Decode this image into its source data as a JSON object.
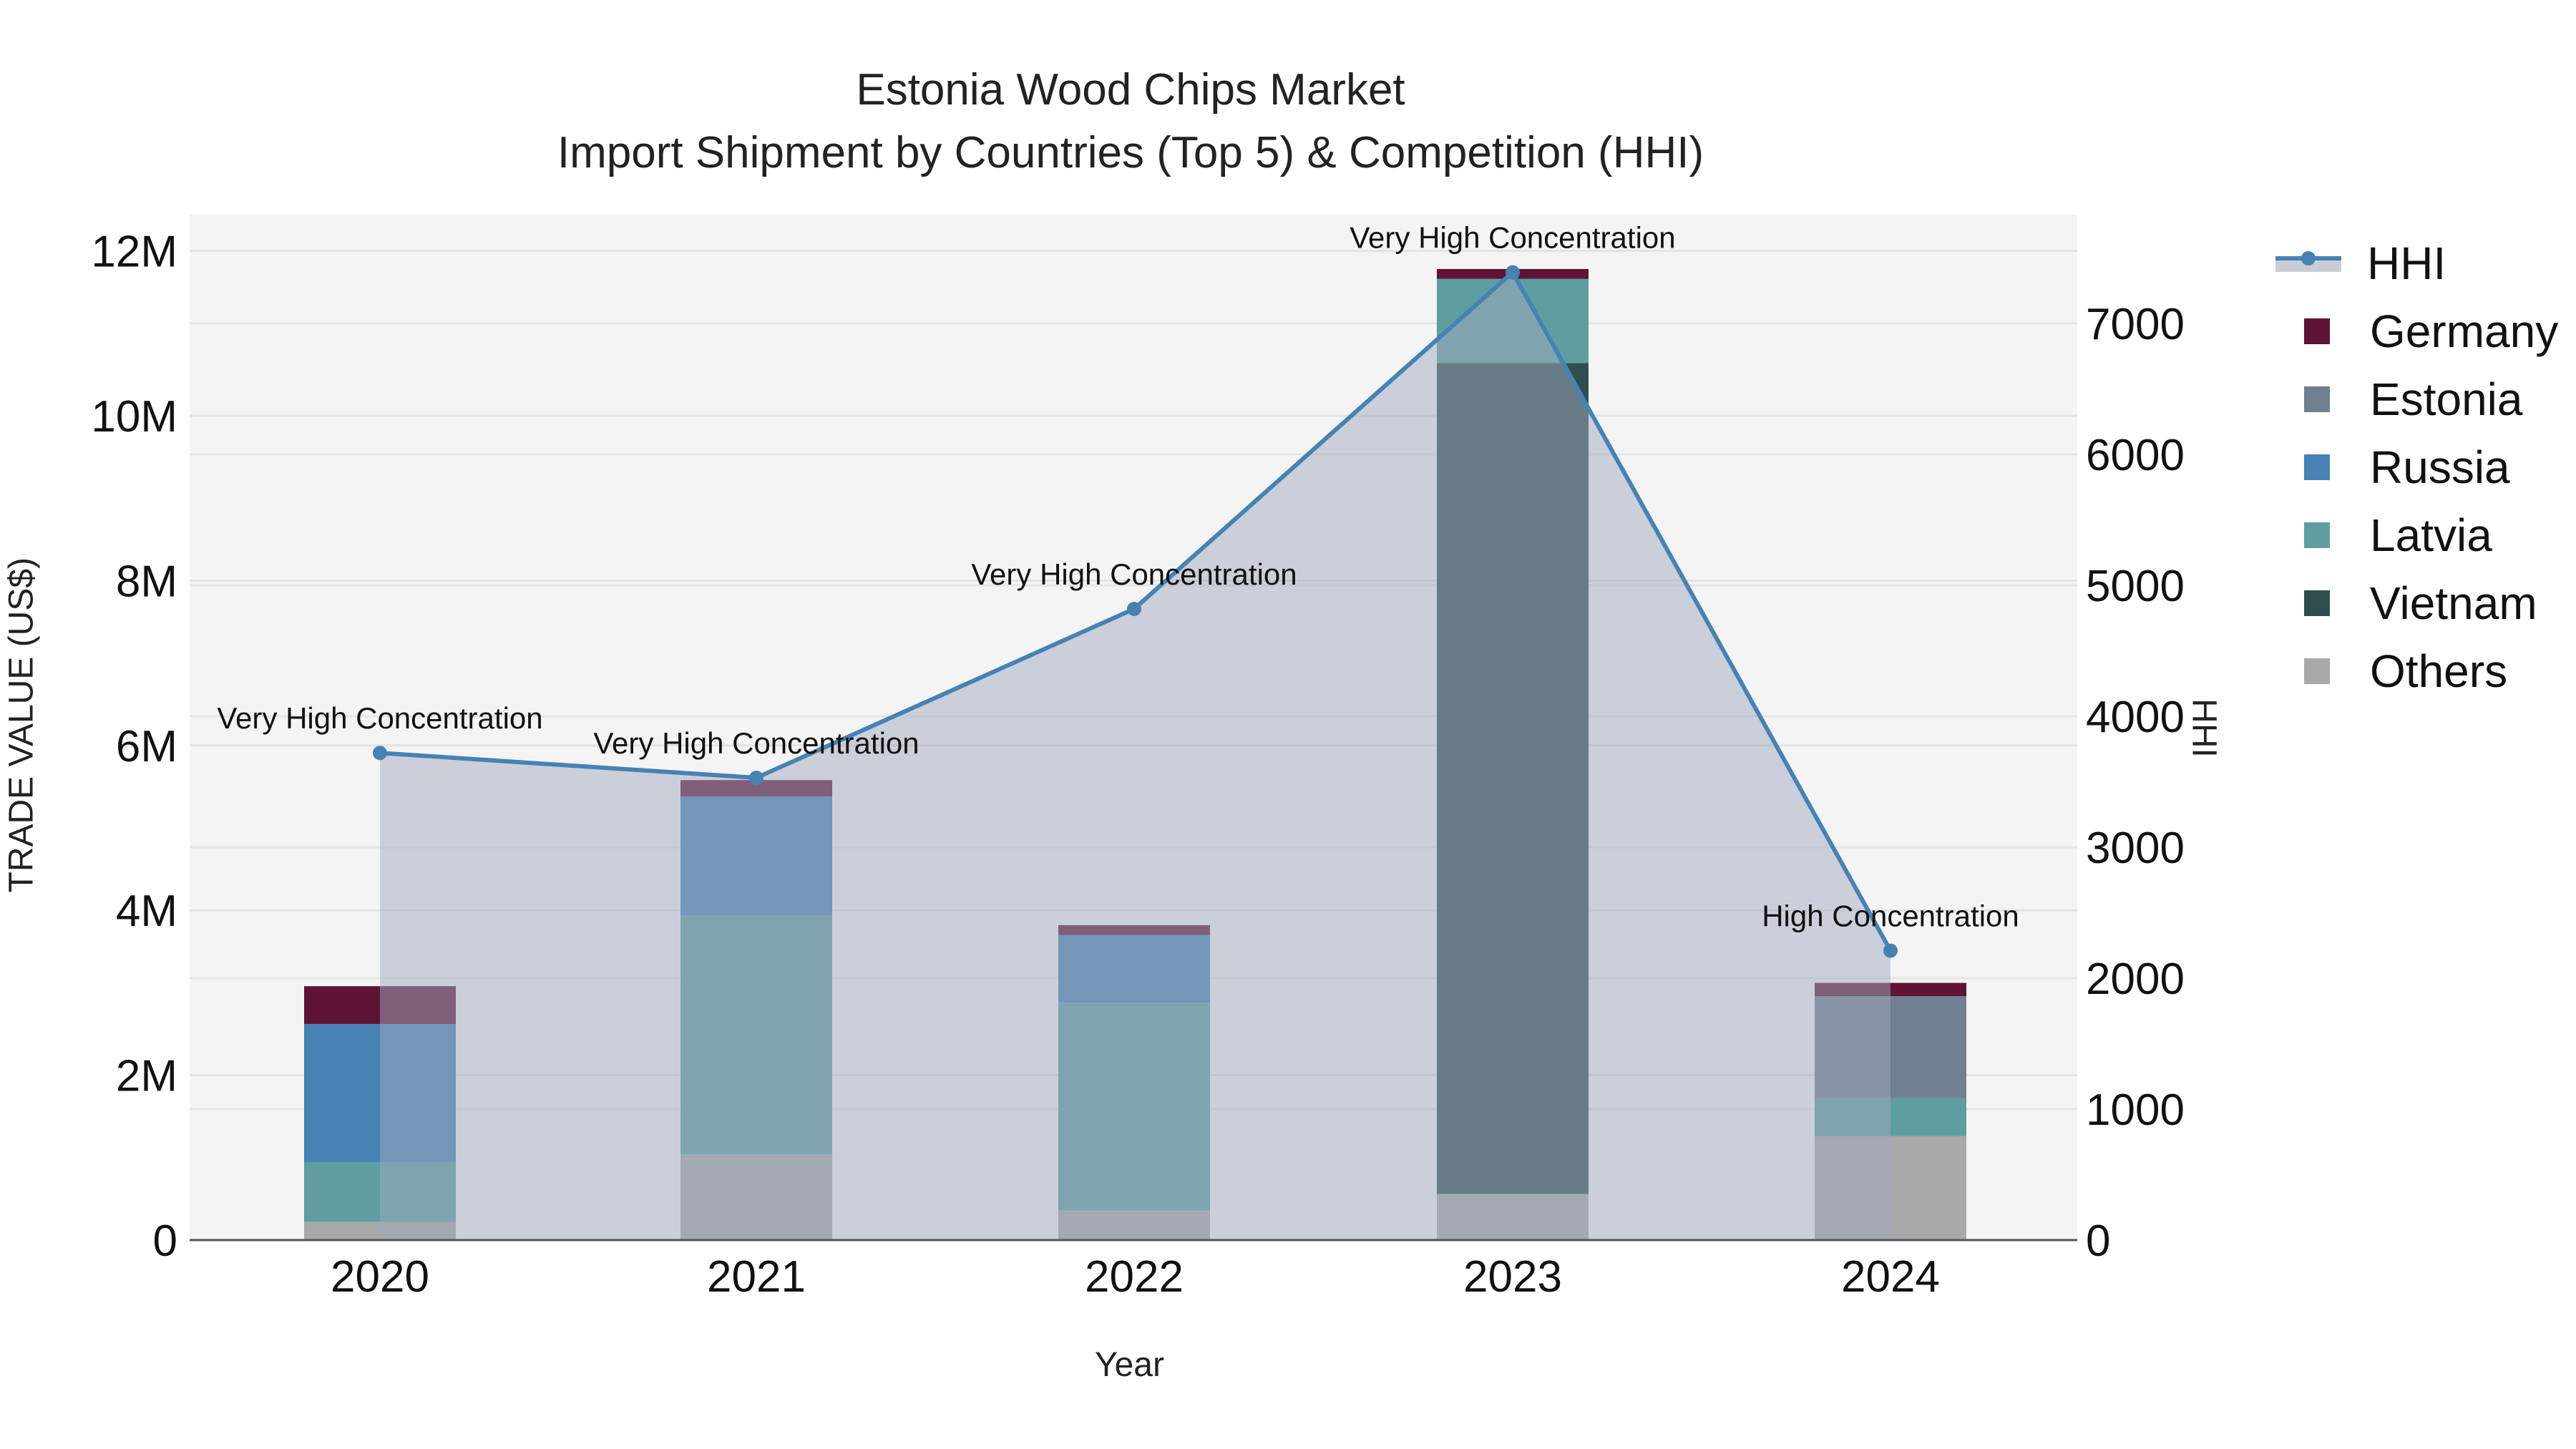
{
  "title": {
    "line1": "Estonia Wood Chips Market",
    "line2": "Import Shipment by Countries (Top 5) & Competition (HHI)"
  },
  "axes": {
    "x_title": "Year",
    "y_left_title": "TRADE VALUE (US$)",
    "y_right_title": "HHI",
    "y_left_ticks": [
      "0",
      "2M",
      "4M",
      "6M",
      "8M",
      "10M",
      "12M"
    ],
    "y_right_ticks": [
      "0",
      "1000",
      "2000",
      "3000",
      "4000",
      "5000",
      "6000",
      "7000"
    ]
  },
  "legend": [
    {
      "label": "HHI",
      "type": "line",
      "color": "#4682b4"
    },
    {
      "label": "Germany",
      "type": "bar",
      "color": "#5f1436"
    },
    {
      "label": "Estonia",
      "type": "bar",
      "color": "#708090"
    },
    {
      "label": "Russia",
      "type": "bar",
      "color": "#4682b4"
    },
    {
      "label": "Latvia",
      "type": "bar",
      "color": "#5f9ea0"
    },
    {
      "label": "Vietnam",
      "type": "bar",
      "color": "#2f4f4f"
    },
    {
      "label": "Others",
      "type": "bar",
      "color": "#a9a9a9"
    }
  ],
  "chart_data": {
    "type": "bar",
    "stacked": true,
    "title": "Estonia Wood Chips Market - Import Shipment by Countries (Top 5) & Competition (HHI)",
    "xlabel": "Year",
    "ylabel": "TRADE VALUE (US$)",
    "y2label": "HHI",
    "ylim": [
      0,
      12400000
    ],
    "y2lim": [
      0,
      7820
    ],
    "categories": [
      "2020",
      "2021",
      "2022",
      "2023",
      "2024"
    ],
    "series": [
      {
        "name": "Others",
        "color": "#a9a9a9",
        "values": [
          220000,
          1040000,
          360000,
          560000,
          1260000
        ]
      },
      {
        "name": "Vietnam",
        "color": "#2f4f4f",
        "values": [
          0,
          0,
          0,
          10080000,
          0
        ]
      },
      {
        "name": "Latvia",
        "color": "#5f9ea0",
        "values": [
          720000,
          2900000,
          2520000,
          1020000,
          460000
        ]
      },
      {
        "name": "Russia",
        "color": "#4682b4",
        "values": [
          1680000,
          1440000,
          820000,
          0,
          0
        ]
      },
      {
        "name": "Estonia",
        "color": "#708090",
        "values": [
          0,
          0,
          0,
          0,
          1240000
        ]
      },
      {
        "name": "Germany",
        "color": "#5f1436",
        "values": [
          460000,
          200000,
          120000,
          120000,
          160000
        ]
      }
    ],
    "line": {
      "name": "HHI",
      "axis": "right",
      "color": "#4682b4",
      "values": [
        3720,
        3530,
        4820,
        7390,
        2210
      ],
      "annotations": [
        "Very High Concentration",
        "Very High Concentration",
        "Very High Concentration",
        "Very High Concentration",
        "High Concentration"
      ]
    },
    "grid": true,
    "legend_position": "right"
  }
}
